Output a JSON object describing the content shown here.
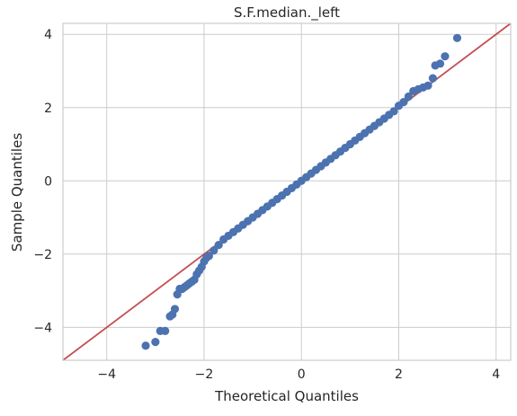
{
  "chart_data": {
    "type": "scatter",
    "title": "S.F.median._left",
    "xlabel": "Theoretical Quantiles",
    "ylabel": "Sample Quantiles",
    "xlim": [
      -4.9,
      4.3
    ],
    "ylim": [
      -4.9,
      4.3
    ],
    "grid": true,
    "xticks": [
      -4,
      -2,
      0,
      2,
      4
    ],
    "yticks": [
      -4,
      -2,
      0,
      2,
      4
    ],
    "xtick_labels": [
      "−4",
      "−2",
      "0",
      "2",
      "4"
    ],
    "ytick_labels": [
      "−4",
      "−2",
      "0",
      "2",
      "4"
    ],
    "marker_color": "#4c72b0",
    "reference_line": {
      "label": "45-degree line",
      "color": "#c44e52",
      "slope": 1,
      "intercept": 0
    },
    "series": [
      {
        "points": [
          [
            -3.2,
            -4.5
          ],
          [
            -3.0,
            -4.4
          ],
          [
            -2.9,
            -4.1
          ],
          [
            -2.8,
            -4.1
          ],
          [
            -2.7,
            -3.7
          ],
          [
            -2.65,
            -3.65
          ],
          [
            -2.6,
            -3.5
          ],
          [
            -2.55,
            -3.1
          ],
          [
            -2.5,
            -2.95
          ],
          [
            -2.45,
            -2.95
          ],
          [
            -2.4,
            -2.9
          ],
          [
            -2.35,
            -2.85
          ],
          [
            -2.3,
            -2.8
          ],
          [
            -2.25,
            -2.75
          ],
          [
            -2.2,
            -2.7
          ],
          [
            -2.15,
            -2.55
          ],
          [
            -2.1,
            -2.45
          ],
          [
            -2.05,
            -2.35
          ],
          [
            -2.0,
            -2.2
          ],
          [
            -1.95,
            -2.1
          ],
          [
            -1.9,
            -2.05
          ],
          [
            -1.8,
            -1.9
          ],
          [
            -1.7,
            -1.75
          ],
          [
            -1.6,
            -1.6
          ],
          [
            -1.5,
            -1.5
          ],
          [
            -1.4,
            -1.4
          ],
          [
            -1.3,
            -1.3
          ],
          [
            -1.2,
            -1.2
          ],
          [
            -1.1,
            -1.1
          ],
          [
            -1.0,
            -1.0
          ],
          [
            -0.9,
            -0.9
          ],
          [
            -0.8,
            -0.8
          ],
          [
            -0.7,
            -0.7
          ],
          [
            -0.6,
            -0.6
          ],
          [
            -0.5,
            -0.5
          ],
          [
            -0.4,
            -0.4
          ],
          [
            -0.3,
            -0.3
          ],
          [
            -0.2,
            -0.2
          ],
          [
            -0.1,
            -0.1
          ],
          [
            0.0,
            0.0
          ],
          [
            0.1,
            0.1
          ],
          [
            0.2,
            0.2
          ],
          [
            0.3,
            0.3
          ],
          [
            0.4,
            0.4
          ],
          [
            0.5,
            0.5
          ],
          [
            0.6,
            0.6
          ],
          [
            0.7,
            0.7
          ],
          [
            0.8,
            0.8
          ],
          [
            0.9,
            0.9
          ],
          [
            1.0,
            1.0
          ],
          [
            1.1,
            1.1
          ],
          [
            1.2,
            1.2
          ],
          [
            1.3,
            1.3
          ],
          [
            1.4,
            1.4
          ],
          [
            1.5,
            1.5
          ],
          [
            1.6,
            1.6
          ],
          [
            1.7,
            1.7
          ],
          [
            1.8,
            1.8
          ],
          [
            1.9,
            1.9
          ],
          [
            2.0,
            2.05
          ],
          [
            2.1,
            2.15
          ],
          [
            2.2,
            2.3
          ],
          [
            2.3,
            2.45
          ],
          [
            2.4,
            2.5
          ],
          [
            2.5,
            2.55
          ],
          [
            2.6,
            2.6
          ],
          [
            2.7,
            2.8
          ],
          [
            2.75,
            3.15
          ],
          [
            2.85,
            3.2
          ],
          [
            2.95,
            3.4
          ],
          [
            3.2,
            3.9
          ]
        ]
      }
    ]
  }
}
